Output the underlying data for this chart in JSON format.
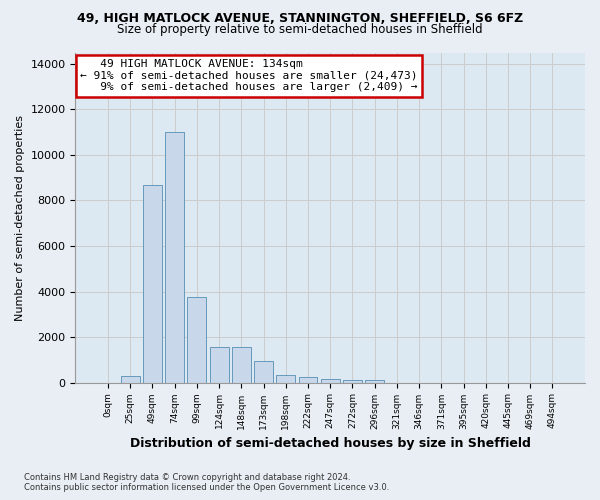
{
  "title_line1": "49, HIGH MATLOCK AVENUE, STANNINGTON, SHEFFIELD, S6 6FZ",
  "title_line2": "Size of property relative to semi-detached houses in Sheffield",
  "xlabel": "Distribution of semi-detached houses by size in Sheffield",
  "ylabel": "Number of semi-detached properties",
  "footnote": "Contains HM Land Registry data © Crown copyright and database right 2024.\nContains public sector information licensed under the Open Government Licence v3.0.",
  "bar_labels": [
    "0sqm",
    "25sqm",
    "49sqm",
    "74sqm",
    "99sqm",
    "124sqm",
    "148sqm",
    "173sqm",
    "198sqm",
    "222sqm",
    "247sqm",
    "272sqm",
    "296sqm",
    "321sqm",
    "346sqm",
    "371sqm",
    "395sqm",
    "420sqm",
    "445sqm",
    "469sqm",
    "494sqm"
  ],
  "bar_values": [
    0,
    300,
    8700,
    11000,
    3750,
    1550,
    1550,
    950,
    350,
    230,
    150,
    100,
    130,
    0,
    0,
    0,
    0,
    0,
    0,
    0,
    0
  ],
  "bar_color": "#c8d8ea",
  "bar_edge_color": "#6699bb",
  "annotation_box_text": "   49 HIGH MATLOCK AVENUE: 134sqm\n← 91% of semi-detached houses are smaller (24,473)\n   9% of semi-detached houses are larger (2,409) →",
  "annotation_box_edge_color": "#cc0000",
  "ylim": [
    0,
    14500
  ],
  "yticks": [
    0,
    2000,
    4000,
    6000,
    8000,
    10000,
    12000,
    14000
  ],
  "grid_color": "#cccccc",
  "bg_color": "#e8eef4",
  "plot_bg_color": "#dce8f2"
}
